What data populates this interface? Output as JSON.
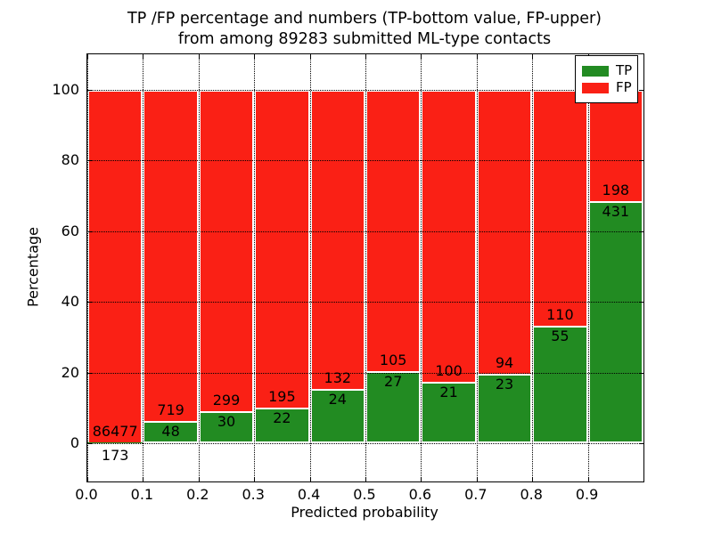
{
  "figure": {
    "background": "#ffffff"
  },
  "title": {
    "line1": "TP /FP percentage and numbers (TP-bottom value, FP-upper)",
    "line2": "from among 89283 submitted ML-type contacts"
  },
  "axes": {
    "xlabel": "Predicted probability",
    "ylabel": "Percentage",
    "xtick_labels": [
      "0.0",
      "0.1",
      "0.2",
      "0.3",
      "0.4",
      "0.5",
      "0.6",
      "0.7",
      "0.8",
      "0.9"
    ],
    "ytick_labels": [
      "0",
      "20",
      "40",
      "60",
      "80",
      "100"
    ],
    "ytick_values": [
      0,
      20,
      40,
      60,
      80,
      100
    ]
  },
  "legend": {
    "items": [
      {
        "label": "TP",
        "color": "#228b22"
      },
      {
        "label": "FP",
        "color": "#fa2015"
      }
    ]
  },
  "chart_data": {
    "type": "bar",
    "stacked": true,
    "normalized": "percent",
    "title": "TP /FP percentage and numbers (TP-bottom value, FP-upper) from among 89283 submitted ML-type contacts",
    "xlabel": "Predicted probability",
    "ylabel": "Percentage",
    "total_contacts": 89283,
    "categories": [
      "0.0-0.1",
      "0.1-0.2",
      "0.2-0.3",
      "0.3-0.4",
      "0.4-0.5",
      "0.5-0.6",
      "0.6-0.7",
      "0.7-0.8",
      "0.8-0.9",
      "0.9-1.0"
    ],
    "bin_left_edges": [
      0.0,
      0.1,
      0.2,
      0.3,
      0.4,
      0.5,
      0.6,
      0.7,
      0.8,
      0.9
    ],
    "series": [
      {
        "name": "TP",
        "color": "#228b22",
        "values": [
          173,
          48,
          30,
          22,
          24,
          27,
          21,
          23,
          55,
          431
        ]
      },
      {
        "name": "FP",
        "color": "#fa2015",
        "values": [
          86477,
          719,
          299,
          195,
          132,
          105,
          100,
          94,
          110,
          198
        ]
      }
    ],
    "bar_edge_color": "#ffffff",
    "ylim": [
      -11,
      110
    ],
    "grid": true,
    "grid_style": "dotted",
    "legend_position": "upper right"
  }
}
